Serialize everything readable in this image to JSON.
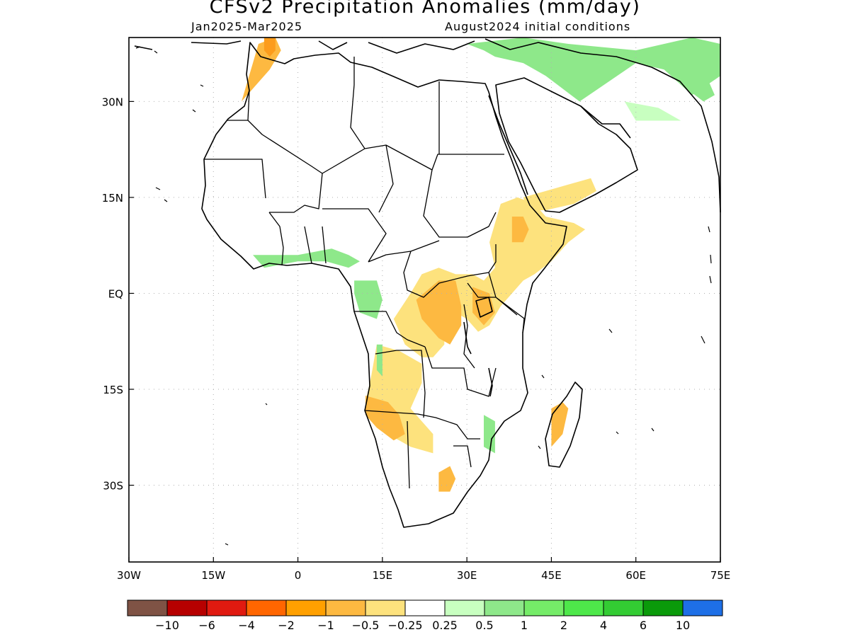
{
  "title": "CFSv2 Precipitation Anomalies (mm/day)",
  "subtitle_left": "Jan2025-Mar2025",
  "subtitle_right": "August2024 initial conditions",
  "map": {
    "lon_range": [
      -30,
      75
    ],
    "lat_range": [
      -42,
      40
    ],
    "gridlines": "dotted",
    "lon_ticks": [
      {
        "value": -30,
        "label": "30W"
      },
      {
        "value": -15,
        "label": "15W"
      },
      {
        "value": 0,
        "label": "0"
      },
      {
        "value": 15,
        "label": "15E"
      },
      {
        "value": 30,
        "label": "30E"
      },
      {
        "value": 45,
        "label": "45E"
      },
      {
        "value": 60,
        "label": "60E"
      },
      {
        "value": 75,
        "label": "75E"
      }
    ],
    "lat_ticks": [
      {
        "value": 30,
        "label": "30N"
      },
      {
        "value": 15,
        "label": "15N"
      },
      {
        "value": 0,
        "label": "EQ"
      },
      {
        "value": -15,
        "label": "15S"
      },
      {
        "value": -30,
        "label": "30S"
      }
    ],
    "colors": {
      "land_outline": "#000000",
      "grid": "#b0b0b0"
    },
    "anomaly_regions": [
      {
        "name": "morocco-dry",
        "class": "-0.5 to -1",
        "color": "#fdb941",
        "pts": [
          [
            -7,
            39
          ],
          [
            -4,
            40
          ],
          [
            -3,
            38
          ],
          [
            -5,
            35
          ],
          [
            -7,
            33
          ],
          [
            -9,
            31
          ],
          [
            -10,
            30
          ],
          [
            -9,
            33
          ],
          [
            -8,
            36
          ]
        ]
      },
      {
        "name": "morocco-dry-core",
        "class": "-1 to -2",
        "color": "#fc9c1c",
        "pts": [
          [
            -6,
            40
          ],
          [
            -4,
            40
          ],
          [
            -4,
            38
          ],
          [
            -5,
            37
          ],
          [
            -6,
            38
          ]
        ]
      },
      {
        "name": "north-med-wet",
        "class": "0.25 to 1",
        "color": "#8ee88a",
        "pts": [
          [
            30,
            39
          ],
          [
            40,
            40
          ],
          [
            48,
            39
          ],
          [
            60,
            38
          ],
          [
            70,
            40
          ],
          [
            75,
            39
          ],
          [
            75,
            34
          ],
          [
            70,
            31
          ],
          [
            65,
            35
          ],
          [
            60,
            36
          ],
          [
            55,
            33
          ],
          [
            50,
            30
          ],
          [
            47,
            32
          ],
          [
            44,
            34
          ],
          [
            40,
            36
          ],
          [
            35,
            37
          ],
          [
            33,
            38
          ]
        ]
      },
      {
        "name": "iran-wet",
        "class": "0.25 to 0.5",
        "color": "#c8ffc0",
        "pts": [
          [
            58,
            30
          ],
          [
            64,
            29
          ],
          [
            68,
            27
          ],
          [
            64,
            27
          ],
          [
            60,
            27
          ]
        ]
      },
      {
        "name": "pakistan-wet",
        "class": "0.5 to 1",
        "color": "#8ee88a",
        "pts": [
          [
            69,
            35
          ],
          [
            73,
            33
          ],
          [
            74,
            31
          ],
          [
            72,
            30
          ],
          [
            69,
            32
          ]
        ]
      },
      {
        "name": "yemen-dry",
        "class": "-0.25 to -0.5",
        "color": "#fde27d",
        "pts": [
          [
            40,
            15
          ],
          [
            44,
            16
          ],
          [
            48,
            17
          ],
          [
            52,
            18
          ],
          [
            53,
            16
          ],
          [
            49,
            14
          ],
          [
            44,
            13
          ],
          [
            41,
            13
          ]
        ]
      },
      {
        "name": "ethiopia-dry",
        "class": "-0.25 to -0.5",
        "color": "#fde27d",
        "pts": [
          [
            36,
            14
          ],
          [
            39,
            15
          ],
          [
            42,
            14
          ],
          [
            44,
            12
          ],
          [
            49,
            11
          ],
          [
            51,
            10
          ],
          [
            48,
            8
          ],
          [
            45,
            5
          ],
          [
            42,
            3
          ],
          [
            40,
            2
          ],
          [
            38,
            0
          ],
          [
            36,
            -2
          ],
          [
            34,
            -5
          ],
          [
            32,
            -6
          ],
          [
            30,
            -4
          ],
          [
            28,
            -3
          ],
          [
            26,
            -5
          ],
          [
            26,
            -8
          ],
          [
            24,
            -10
          ],
          [
            22,
            -10
          ],
          [
            19,
            -8
          ],
          [
            17,
            -4
          ],
          [
            20,
            0
          ],
          [
            22,
            3
          ],
          [
            25,
            4
          ],
          [
            28,
            3
          ],
          [
            31,
            3
          ],
          [
            33,
            2
          ],
          [
            35,
            4
          ],
          [
            34,
            8
          ],
          [
            35,
            11
          ]
        ]
      },
      {
        "name": "ethiopia-dry-core",
        "class": "-0.5 to -1",
        "color": "#fdb941",
        "pts": [
          [
            38,
            12
          ],
          [
            40,
            12
          ],
          [
            41,
            10
          ],
          [
            40,
            8
          ],
          [
            38,
            8
          ]
        ]
      },
      {
        "name": "drc-dry-core",
        "class": "-0.5 to -1",
        "color": "#fdb941",
        "pts": [
          [
            21,
            -1
          ],
          [
            25,
            2
          ],
          [
            28,
            2
          ],
          [
            29,
            -2
          ],
          [
            29,
            -5
          ],
          [
            27,
            -8
          ],
          [
            25,
            -7
          ],
          [
            22,
            -4
          ]
        ]
      },
      {
        "name": "east-africa-dry-core",
        "class": "-0.5 to -1",
        "color": "#fdb941",
        "pts": [
          [
            31,
            1
          ],
          [
            34,
            0
          ],
          [
            35,
            -3
          ],
          [
            33,
            -5
          ],
          [
            31,
            -3
          ]
        ]
      },
      {
        "name": "angola-dry",
        "class": "-0.25 to -0.5",
        "color": "#fde27d",
        "pts": [
          [
            14,
            -8
          ],
          [
            18,
            -9
          ],
          [
            22,
            -11
          ],
          [
            22,
            -14
          ],
          [
            20,
            -18
          ],
          [
            22,
            -20
          ],
          [
            24,
            -22
          ],
          [
            24,
            -25
          ],
          [
            20,
            -24
          ],
          [
            18,
            -23
          ],
          [
            16,
            -22
          ],
          [
            13,
            -19
          ],
          [
            12,
            -17
          ],
          [
            13,
            -13
          ]
        ]
      },
      {
        "name": "namibia-dry-core",
        "class": "-0.5 to -1",
        "color": "#fdb941",
        "pts": [
          [
            12,
            -16
          ],
          [
            16,
            -17
          ],
          [
            18,
            -19
          ],
          [
            19,
            -22
          ],
          [
            17,
            -23
          ],
          [
            14,
            -21
          ],
          [
            12,
            -19
          ]
        ]
      },
      {
        "name": "angola-wet",
        "class": "0.25 to 1",
        "color": "#8ee88a",
        "pts": [
          [
            14,
            -8
          ],
          [
            15,
            -8
          ],
          [
            15,
            -13
          ],
          [
            14,
            -12
          ]
        ]
      },
      {
        "name": "south-africa-dry",
        "class": "-0.25 to -1",
        "color": "#fdb941",
        "pts": [
          [
            25,
            -28
          ],
          [
            27,
            -27
          ],
          [
            28,
            -29
          ],
          [
            27,
            -31
          ],
          [
            25,
            -31
          ]
        ]
      },
      {
        "name": "gabon-wet",
        "class": "0.5 to 1",
        "color": "#8ee88a",
        "pts": [
          [
            10,
            2
          ],
          [
            14,
            2
          ],
          [
            15,
            -1
          ],
          [
            14,
            -4
          ],
          [
            11,
            -3
          ],
          [
            10,
            0
          ]
        ]
      },
      {
        "name": "guinea-coast-wet",
        "class": "0.25 to 1",
        "color": "#8ee88a",
        "pts": [
          [
            -8,
            6
          ],
          [
            -4,
            6
          ],
          [
            0,
            6
          ],
          [
            6,
            7
          ],
          [
            9,
            6
          ],
          [
            11,
            5
          ],
          [
            9,
            4
          ],
          [
            5,
            5
          ],
          [
            0,
            5
          ],
          [
            -6,
            4
          ]
        ]
      },
      {
        "name": "mozambique-wet",
        "class": "0.5 to 1",
        "color": "#8ee88a",
        "pts": [
          [
            33,
            -19
          ],
          [
            35,
            -20
          ],
          [
            35,
            -25
          ],
          [
            33,
            -24
          ]
        ]
      },
      {
        "name": "madagascar-dry",
        "class": "-0.5 to -1",
        "color": "#fdb941",
        "pts": [
          [
            45,
            -18
          ],
          [
            47,
            -17
          ],
          [
            48,
            -18
          ],
          [
            47,
            -22
          ],
          [
            45,
            -24
          ]
        ]
      }
    ]
  },
  "colorbar": {
    "labels": [
      "-10",
      "-6",
      "-4",
      "-2",
      "-1",
      "-0.5",
      "-0.25",
      "0.25",
      "0.5",
      "1",
      "2",
      "4",
      "6",
      "10"
    ],
    "colors": [
      "#7f5345",
      "#b70000",
      "#e01a10",
      "#ff6600",
      "#ffa000",
      "#fdb941",
      "#fde27d",
      "#ffffff",
      "#c8ffc0",
      "#8ee88a",
      "#75ec68",
      "#4ee84a",
      "#33cc33",
      "#0a9a0a",
      "#1e6fe6"
    ]
  }
}
